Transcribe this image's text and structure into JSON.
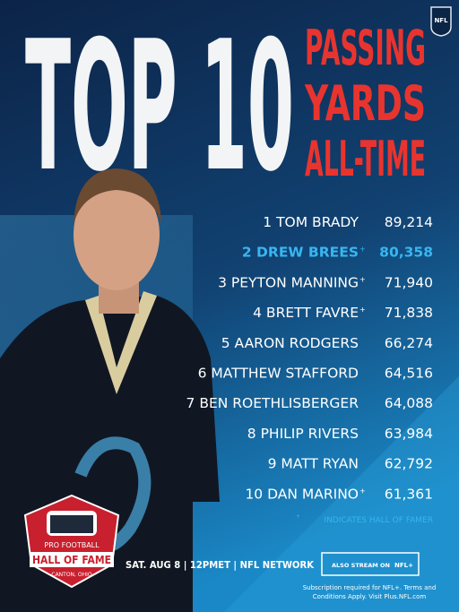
{
  "header": {
    "title": "TOP 10",
    "subtitle_lines": [
      "PASSING",
      "YARDS",
      "ALL-TIME"
    ],
    "logo": "NFL"
  },
  "ranking": {
    "hof_marker": "+",
    "rows": [
      {
        "label": "1 TOM BRADY",
        "yards": "89,214",
        "hof": false,
        "highlight": false
      },
      {
        "label": "2 DREW BREES",
        "yards": "80,358",
        "hof": true,
        "highlight": true
      },
      {
        "label": "3 PEYTON MANNING",
        "yards": "71,940",
        "hof": true,
        "highlight": false
      },
      {
        "label": "4 BRETT FAVRE",
        "yards": "71,838",
        "hof": true,
        "highlight": false
      },
      {
        "label": "5 AARON RODGERS",
        "yards": "66,274",
        "hof": false,
        "highlight": false
      },
      {
        "label": "6 MATTHEW STAFFORD",
        "yards": "64,516",
        "hof": false,
        "highlight": false
      },
      {
        "label": "7 BEN ROETHLISBERGER",
        "yards": "64,088",
        "hof": false,
        "highlight": false
      },
      {
        "label": "8 PHILIP RIVERS",
        "yards": "63,984",
        "hof": false,
        "highlight": false
      },
      {
        "label": "9 MATT RYAN",
        "yards": "62,792",
        "hof": false,
        "highlight": false
      },
      {
        "label": "10 DAN MARINO",
        "yards": "61,361",
        "hof": true,
        "highlight": false
      }
    ],
    "footnote": "INDICATES HALL OF FAMER"
  },
  "hof_logo": {
    "top": "PRO FOOTBALL",
    "middle": "HALL OF FAME",
    "bottom": "CANTON, OHIO"
  },
  "footer": {
    "broadcast": "SAT. AUG 8 | 12PMET | NFL NETWORK",
    "button_text": "ALSO STREAM ON",
    "button_logo": "NFL+",
    "fine_print": [
      "Subscription required for NFL+. Terms and",
      "Conditions Apply. Visit Plus.NFL.com"
    ]
  }
}
